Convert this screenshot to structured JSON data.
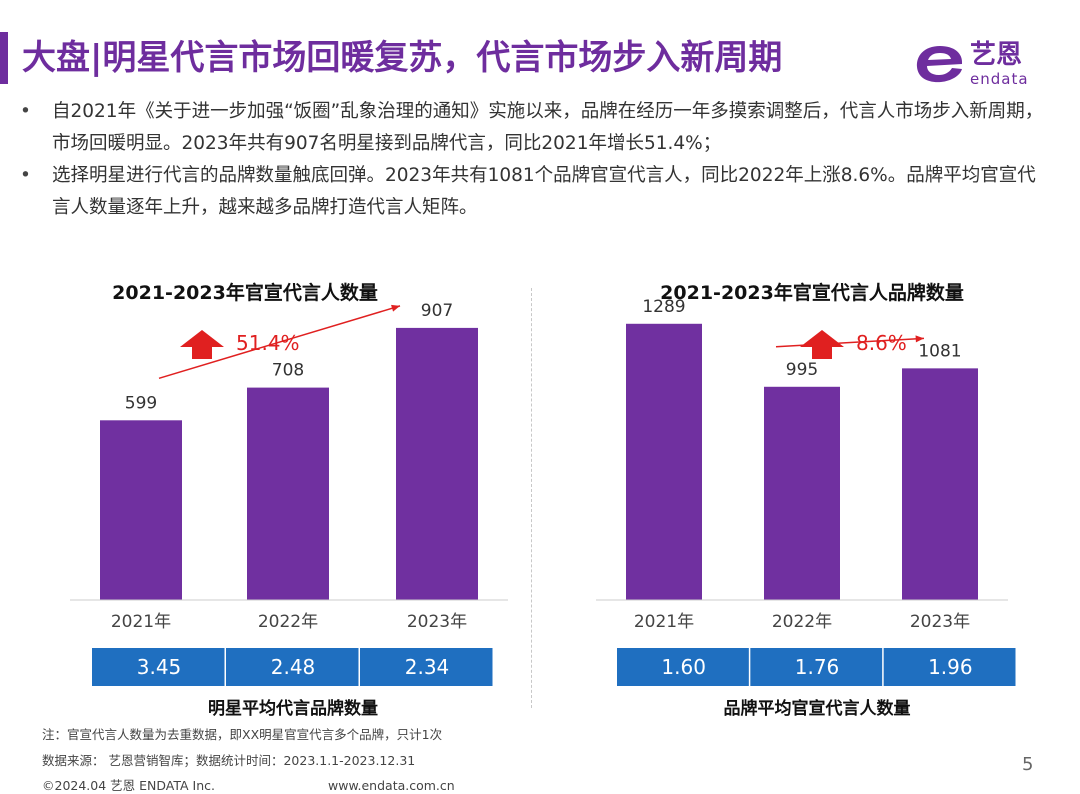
{
  "page": {
    "title": "大盘|明星代言市场回暖复苏，代言市场步入新周期",
    "bullets": [
      "自2021年《关于进一步加强“饭圈”乱象治理的通知》实施以来，品牌在经历一年多摸索调整后，代言人市场步入新周期，市场回暖明显。2023年共有907名明星接到品牌代言，同比2021年增长51.4%；",
      "选择明星进行代言的品牌数量触底回弹。2023年共有1081个品牌官宣代言人，同比2022年上涨8.6%。品牌平均官宣代言人数量逐年上升，越来越多品牌打造代言人矩阵。"
    ],
    "bullet_symbol": "•",
    "logo": {
      "cn": "艺恩",
      "en": "endata",
      "icon": "endata-logo-icon"
    },
    "footnote": "注：官宣代言人数量为去重数据，即XX明星官宣代言多个品牌，只计1次",
    "source": "数据来源： 艺恩营销智库；数据统计时间：2023.1.1-2023.12.31",
    "copyright": "©2024.04 艺恩 ENDATA Inc.",
    "url": "www.endata.com.cn",
    "page_number": "5",
    "colors": {
      "accent": "#6e2d9e",
      "bar": "#7030a0",
      "table": "#1f6fc0",
      "arrow": "#e02020"
    }
  },
  "chart_data": [
    {
      "type": "bar",
      "title": "2021-2023年官宣代言人数量",
      "categories": [
        "2021年",
        "2022年",
        "2023年"
      ],
      "values": [
        599,
        708,
        907
      ],
      "value_labels": [
        "599",
        "708",
        "907"
      ],
      "growth_label": "51.4%",
      "ylim": [
        0,
        1000
      ],
      "grid": false,
      "table_values": [
        "3.45",
        "2.48",
        "2.34"
      ],
      "table_label": "明星平均代言品牌数量"
    },
    {
      "type": "bar",
      "title": "2021-2023年官宣代言人品牌数量",
      "categories": [
        "2021年",
        "2022年",
        "2023年"
      ],
      "values": [
        1289,
        995,
        1081
      ],
      "value_labels": [
        "1289",
        "995",
        "1081"
      ],
      "growth_label": "8.6%",
      "ylim": [
        0,
        1400
      ],
      "grid": false,
      "table_values": [
        "1.60",
        "1.76",
        "1.96"
      ],
      "table_label": "品牌平均官宣代言人数量"
    }
  ]
}
